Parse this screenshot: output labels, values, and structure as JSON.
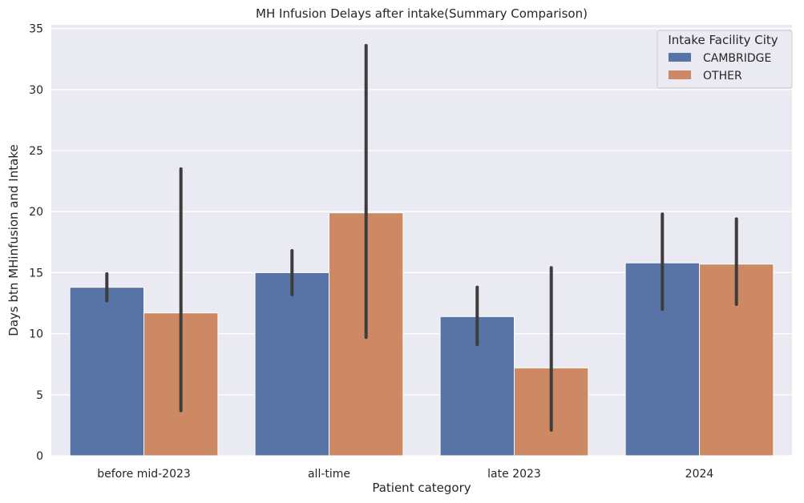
{
  "chart_data": {
    "type": "bar",
    "title": "MH Infusion Delays after intake(Summary Comparison)",
    "xlabel": "Patient category",
    "ylabel": "Days btn MHinfusion and Intake",
    "ylim": [
      0,
      35.3
    ],
    "yticks": [
      "0",
      "5",
      "10",
      "15",
      "20",
      "25",
      "30",
      "35"
    ],
    "categories": [
      "before mid-2023",
      "all-time",
      "late 2023",
      "2024"
    ],
    "legend": {
      "title": "Intake Facility City",
      "position": "top-right"
    },
    "grid": true,
    "series": [
      {
        "name": "CAMBRIDGE",
        "color": "#5874a6",
        "values": [
          13.8,
          15.0,
          11.4,
          15.8
        ],
        "error_low": [
          12.7,
          13.2,
          9.1,
          12.0
        ],
        "error_high": [
          14.9,
          16.8,
          13.8,
          19.8
        ]
      },
      {
        "name": "OTHER",
        "color": "#cc8963",
        "values": [
          11.7,
          19.9,
          7.2,
          15.7
        ],
        "error_low": [
          3.7,
          9.7,
          2.1,
          12.4
        ],
        "error_high": [
          23.5,
          33.6,
          15.4,
          19.4
        ]
      }
    ]
  }
}
